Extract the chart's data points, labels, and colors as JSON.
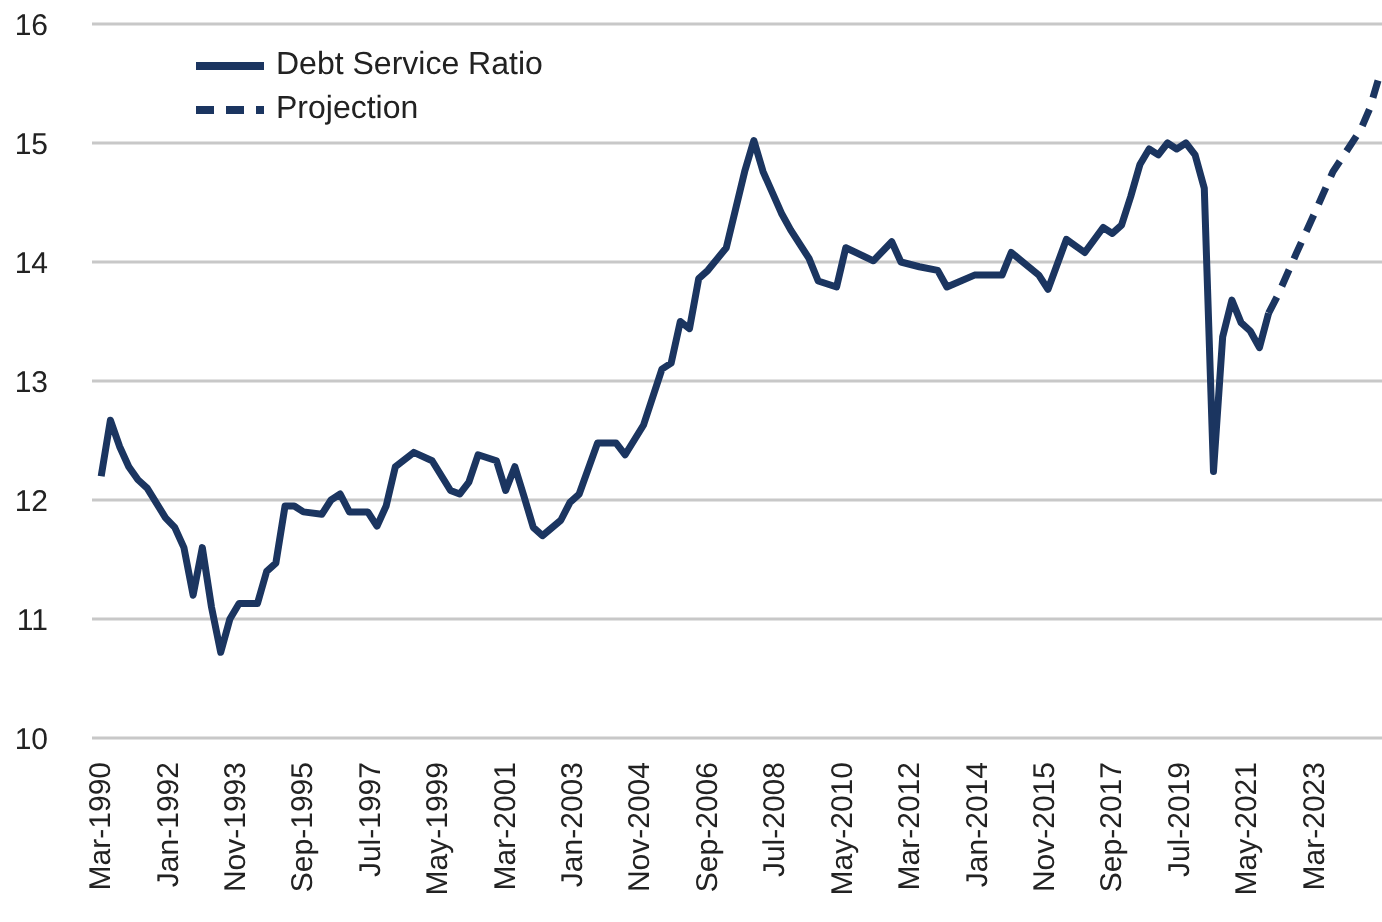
{
  "chart_data": {
    "type": "line",
    "legend": "top left",
    "grid": "y",
    "marker": "none",
    "ylim": [
      10,
      16
    ],
    "yticks": [
      10,
      11,
      12,
      13,
      14,
      15,
      16
    ],
    "xlim": [
      "1989-12",
      "2025-01"
    ],
    "xticks": [
      {
        "value": "1990-03",
        "label": "Mar-1990"
      },
      {
        "value": "1992-01",
        "label": "Jan-1992"
      },
      {
        "value": "1993-11",
        "label": "Nov-1993"
      },
      {
        "value": "1995-09",
        "label": "Sep-1995"
      },
      {
        "value": "1997-07",
        "label": "Jul-1997"
      },
      {
        "value": "1999-05",
        "label": "May-1999"
      },
      {
        "value": "2001-03",
        "label": "Mar-2001"
      },
      {
        "value": "2003-01",
        "label": "Jan-2003"
      },
      {
        "value": "2004-11",
        "label": "Nov-2004"
      },
      {
        "value": "2006-09",
        "label": "Sep-2006"
      },
      {
        "value": "2008-07",
        "label": "Jul-2008"
      },
      {
        "value": "2010-05",
        "label": "May-2010"
      },
      {
        "value": "2012-03",
        "label": "Mar-2012"
      },
      {
        "value": "2014-01",
        "label": "Jan-2014"
      },
      {
        "value": "2015-11",
        "label": "Nov-2015"
      },
      {
        "value": "2017-09",
        "label": "Sep-2017"
      },
      {
        "value": "2019-07",
        "label": "Jul-2019"
      },
      {
        "value": "2021-05",
        "label": "May-2021"
      },
      {
        "value": "2023-03",
        "label": "Mar-2023"
      }
    ],
    "series": [
      {
        "name": "Debt Service Ratio",
        "color": "#1b3560",
        "line_style": "solid",
        "x": [
          "1990-03",
          "1990-06",
          "1990-09",
          "1990-12",
          "1991-03",
          "1991-06",
          "1991-12",
          "1992-03",
          "1992-06",
          "1992-09",
          "1992-12",
          "1993-03",
          "1993-06",
          "1993-09",
          "1993-12",
          "1994-06",
          "1994-09",
          "1994-12",
          "1995-03",
          "1995-06",
          "1995-09",
          "1996-03",
          "1996-06",
          "1996-09",
          "1996-12",
          "1997-06",
          "1997-09",
          "1997-12",
          "1998-03",
          "1998-09",
          "1999-03",
          "1999-09",
          "1999-12",
          "2000-03",
          "2000-06",
          "2000-12",
          "2001-03",
          "2001-06",
          "2001-09",
          "2001-12",
          "2002-03",
          "2002-09",
          "2002-12",
          "2003-03",
          "2003-09",
          "2004-03",
          "2004-06",
          "2004-12",
          "2005-06",
          "2005-09",
          "2005-12",
          "2006-03",
          "2006-06",
          "2006-09",
          "2007-03",
          "2007-09",
          "2007-12",
          "2008-03",
          "2008-09",
          "2008-12",
          "2009-03",
          "2009-06",
          "2009-09",
          "2010-03",
          "2010-06",
          "2011-03",
          "2011-09",
          "2011-12",
          "2012-06",
          "2012-12",
          "2013-03",
          "2013-12",
          "2014-06",
          "2014-09",
          "2014-12",
          "2015-09",
          "2015-12",
          "2016-06",
          "2016-12",
          "2017-06",
          "2017-09",
          "2017-12",
          "2018-03",
          "2018-06",
          "2018-09",
          "2018-12",
          "2019-03",
          "2019-06",
          "2019-09",
          "2019-12",
          "2020-03",
          "2020-06",
          "2020-09",
          "2020-12",
          "2021-03",
          "2021-06",
          "2021-09",
          "2021-12"
        ],
        "values": [
          12.2,
          12.67,
          12.45,
          12.28,
          12.17,
          12.1,
          11.85,
          11.77,
          11.6,
          11.2,
          11.6,
          11.1,
          10.72,
          11.0,
          11.13,
          11.13,
          11.4,
          11.47,
          11.95,
          11.95,
          11.9,
          11.88,
          12.0,
          12.05,
          11.9,
          11.9,
          11.78,
          11.95,
          12.28,
          12.4,
          12.33,
          12.08,
          12.05,
          12.15,
          12.38,
          12.33,
          12.08,
          12.28,
          12.03,
          11.77,
          11.7,
          11.83,
          11.98,
          12.05,
          12.48,
          12.48,
          12.38,
          12.63,
          13.1,
          13.15,
          13.5,
          13.44,
          13.86,
          13.93,
          14.12,
          14.76,
          15.02,
          14.76,
          14.41,
          14.27,
          14.15,
          14.03,
          13.84,
          13.79,
          14.12,
          14.01,
          14.17,
          14.0,
          13.96,
          13.93,
          13.79,
          13.89,
          13.89,
          13.89,
          14.08,
          13.89,
          13.77,
          14.19,
          14.08,
          14.29,
          14.24,
          14.31,
          14.55,
          14.82,
          14.95,
          14.9,
          15.0,
          14.95,
          15.0,
          14.9,
          14.62,
          12.24,
          13.37,
          13.68,
          13.49,
          13.42,
          13.28,
          13.57
        ]
      },
      {
        "name": "Projection",
        "color": "#1b3560",
        "line_style": "dashed",
        "x": [
          "2021-12",
          "2022-03",
          "2022-09",
          "2023-03",
          "2023-09",
          "2024-06",
          "2024-09",
          "2024-12"
        ],
        "values": [
          13.57,
          13.72,
          14.07,
          14.41,
          14.76,
          15.11,
          15.29,
          15.55
        ]
      }
    ]
  }
}
